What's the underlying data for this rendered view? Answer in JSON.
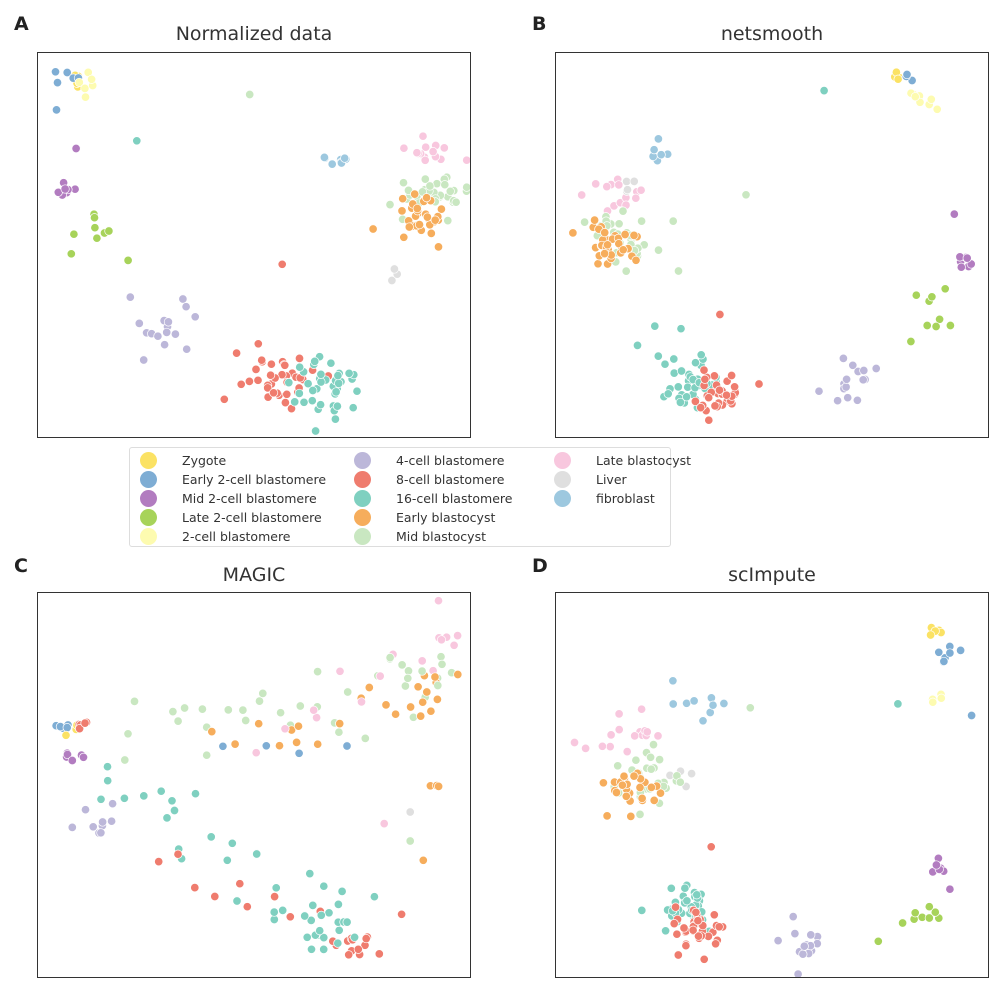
{
  "legend": [
    {
      "label": "Zygote",
      "color": "#fbe264"
    },
    {
      "label": "Early 2-cell blastomere",
      "color": "#7eadd4"
    },
    {
      "label": "Mid 2-cell blastomere",
      "color": "#b27cc0"
    },
    {
      "label": "Late 2-cell blastomere",
      "color": "#a7d35a"
    },
    {
      "label": "2-cell blastomere",
      "color": "#fdfbb0"
    },
    {
      "label": "4-cell blastomere",
      "color": "#bcb7d9"
    },
    {
      "label": "8-cell blastomere",
      "color": "#ef7c6e"
    },
    {
      "label": "16-cell blastomere",
      "color": "#7fd0c0"
    },
    {
      "label": "Early blastocyst",
      "color": "#f6ad5c"
    },
    {
      "label": "Mid blastocyst",
      "color": "#c9e7c1"
    },
    {
      "label": "Late blastocyst",
      "color": "#f8c7de"
    },
    {
      "label": "Liver",
      "color": "#dfdfdf"
    },
    {
      "label": "fibroblast",
      "color": "#9dc8df"
    }
  ],
  "chart_data": [
    {
      "type": "scatter",
      "panel": "A",
      "title": "Normalized data",
      "xlabel": "",
      "ylabel": "",
      "xlim": [
        0,
        100
      ],
      "ylim": [
        0,
        100
      ],
      "grid": false,
      "clusters": [
        {
          "group": "Zygote",
          "x": 9.5,
          "y": 94.5,
          "spread": 1.5,
          "n": 5
        },
        {
          "group": "Early 2-cell blastomere",
          "x": 7.5,
          "y": 93.5,
          "spread": 2.0,
          "n": 5
        },
        {
          "group": "2-cell blastomere",
          "x": 11.0,
          "y": 91.5,
          "spread": 2.0,
          "n": 6
        },
        {
          "group": "Mid 2-cell blastomere",
          "x": 6.5,
          "y": 64.5,
          "spread": 1.3,
          "n": 7
        },
        {
          "group": "Late 2-cell blastomere",
          "x": 12.5,
          "y": 54.5,
          "spread": 2.5,
          "n": 8
        },
        {
          "group": "4-cell blastomere",
          "x": 29.0,
          "y": 27.5,
          "spread": 3.5,
          "n": 14
        },
        {
          "group": "8-cell blastomere",
          "x": 56.0,
          "y": 15.0,
          "spread": 4.0,
          "n": 38
        },
        {
          "group": "16-cell blastomere",
          "x": 67.5,
          "y": 13.5,
          "spread": 4.0,
          "n": 40
        },
        {
          "group": "fibroblast",
          "x": 70.5,
          "y": 71.5,
          "spread": 1.5,
          "n": 8
        },
        {
          "group": "Late blastocyst",
          "x": 90.0,
          "y": 75.0,
          "spread": 3.0,
          "n": 14
        },
        {
          "group": "Mid blastocyst",
          "x": 90.0,
          "y": 63.0,
          "spread": 4.0,
          "n": 35
        },
        {
          "group": "Early blastocyst",
          "x": 88.5,
          "y": 56.0,
          "spread": 3.5,
          "n": 32
        },
        {
          "group": "Liver",
          "x": 82.0,
          "y": 42.0,
          "spread": 1.0,
          "n": 3
        }
      ],
      "outliers": [
        {
          "group": "Early 2-cell blastomere",
          "x": 4.5,
          "y": 85.0
        },
        {
          "group": "Mid 2-cell blastomere",
          "x": 9.0,
          "y": 75.0
        },
        {
          "group": "Late 2-cell blastomere",
          "x": 21.0,
          "y": 46.0
        },
        {
          "group": "4-cell blastomere",
          "x": 21.5,
          "y": 36.5
        },
        {
          "group": "4-cell blastomere",
          "x": 34.5,
          "y": 23.0
        },
        {
          "group": "16-cell blastomere",
          "x": 23.0,
          "y": 77.0
        },
        {
          "group": "Mid blastocyst",
          "x": 49.0,
          "y": 89.0
        },
        {
          "group": "8-cell blastomere",
          "x": 56.5,
          "y": 45.0
        },
        {
          "group": "8-cell blastomere",
          "x": 46.0,
          "y": 22.0
        }
      ]
    },
    {
      "type": "scatter",
      "panel": "B",
      "title": "netsmooth",
      "xlabel": "",
      "ylabel": "",
      "xlim": [
        0,
        100
      ],
      "ylim": [
        0,
        100
      ],
      "grid": false,
      "clusters": [
        {
          "group": "Zygote",
          "x": 79.0,
          "y": 94.0,
          "spread": 1.2,
          "n": 4
        },
        {
          "group": "Early 2-cell blastomere",
          "x": 80.5,
          "y": 94.0,
          "spread": 1.0,
          "n": 3
        },
        {
          "group": "2-cell blastomere",
          "x": 84.0,
          "y": 87.0,
          "spread": 2.5,
          "n": 8
        },
        {
          "group": "Mid 2-cell blastomere",
          "x": 95.0,
          "y": 46.0,
          "spread": 1.0,
          "n": 7
        },
        {
          "group": "Late 2-cell blastomere",
          "x": 88.0,
          "y": 34.0,
          "spread": 3.0,
          "n": 8
        },
        {
          "group": "4-cell blastomere",
          "x": 67.0,
          "y": 14.0,
          "spread": 3.0,
          "n": 14
        },
        {
          "group": "fibroblast",
          "x": 24.0,
          "y": 74.0,
          "spread": 1.8,
          "n": 6
        },
        {
          "group": "Late blastocyst",
          "x": 13.5,
          "y": 62.5,
          "spread": 3.5,
          "n": 14
        },
        {
          "group": "Liver",
          "x": 16.5,
          "y": 64.5,
          "spread": 1.2,
          "n": 4
        },
        {
          "group": "Mid blastocyst",
          "x": 17.0,
          "y": 51.5,
          "spread": 4.0,
          "n": 30
        },
        {
          "group": "Early blastocyst",
          "x": 12.5,
          "y": 50.5,
          "spread": 3.5,
          "n": 34
        },
        {
          "group": "16-cell blastomere",
          "x": 30.5,
          "y": 14.5,
          "spread": 4.0,
          "n": 38
        },
        {
          "group": "8-cell blastomere",
          "x": 38.0,
          "y": 11.0,
          "spread": 3.0,
          "n": 36
        }
      ],
      "outliers": [
        {
          "group": "16-cell blastomere",
          "x": 62.0,
          "y": 90.0
        },
        {
          "group": "Mid blastocyst",
          "x": 44.0,
          "y": 63.0
        },
        {
          "group": "Mid 2-cell blastomere",
          "x": 92.0,
          "y": 58.0
        },
        {
          "group": "Late 2-cell blastomere",
          "x": 82.0,
          "y": 25.0
        },
        {
          "group": "4-cell blastomere",
          "x": 74.0,
          "y": 18.0
        },
        {
          "group": "16-cell blastomere",
          "x": 23.0,
          "y": 29.0
        },
        {
          "group": "16-cell blastomere",
          "x": 19.0,
          "y": 24.0
        },
        {
          "group": "8-cell blastomere",
          "x": 38.0,
          "y": 32.0
        },
        {
          "group": "8-cell blastomere",
          "x": 47.0,
          "y": 14.0
        }
      ]
    },
    {
      "type": "scatter",
      "panel": "C",
      "title": "MAGIC",
      "xlabel": "",
      "ylabel": "",
      "xlim": [
        0,
        100
      ],
      "ylim": [
        0,
        100
      ],
      "grid": false,
      "clusters": [
        {
          "group": "Early 2-cell blastomere",
          "x": 6.0,
          "y": 66.5,
          "spread": 1.2,
          "n": 5
        },
        {
          "group": "Zygote",
          "x": 8.0,
          "y": 64.5,
          "spread": 1.0,
          "n": 3
        },
        {
          "group": "8-cell blastomere",
          "x": 10.5,
          "y": 66.0,
          "spread": 1.5,
          "n": 5
        },
        {
          "group": "Mid 2-cell blastomere",
          "x": 8.0,
          "y": 58.0,
          "spread": 1.2,
          "n": 6
        },
        {
          "group": "4-cell blastomere",
          "x": 13.0,
          "y": 41.0,
          "spread": 2.5,
          "n": 10
        },
        {
          "group": "8-cell blastomere",
          "x": 73.0,
          "y": 8.0,
          "spread": 2.5,
          "n": 10
        },
        {
          "group": "16-cell blastomere",
          "x": 68.0,
          "y": 14.0,
          "spread": 4.5,
          "n": 18
        },
        {
          "group": "Early blastocyst",
          "x": 90.0,
          "y": 74.0,
          "spread": 3.5,
          "n": 10
        },
        {
          "group": "Late blastocyst",
          "x": 92.0,
          "y": 86.0,
          "spread": 2.5,
          "n": 6
        },
        {
          "group": "Mid blastocyst",
          "x": 88.0,
          "y": 80.0,
          "spread": 4.0,
          "n": 8
        },
        {
          "group": "Early blastocyst",
          "x": 91.0,
          "y": 49.5,
          "spread": 1.0,
          "n": 3
        }
      ],
      "trail": [
        {
          "group": "Mid blastocyst",
          "x0": 22,
          "y0": 60,
          "x1": 92,
          "y1": 80,
          "n": 30,
          "jitter": 5
        },
        {
          "group": "Early blastocyst",
          "x0": 42,
          "y0": 58,
          "x1": 88,
          "y1": 72,
          "n": 14,
          "jitter": 4
        },
        {
          "group": "Late blastocyst",
          "x0": 52,
          "y0": 57,
          "x1": 94,
          "y1": 88,
          "n": 10,
          "jitter": 4
        },
        {
          "group": "16-cell blastomere",
          "x0": 14,
          "y0": 55,
          "x1": 70,
          "y1": 15,
          "n": 26,
          "jitter": 5
        },
        {
          "group": "8-cell blastomere",
          "x0": 28,
          "y0": 30,
          "x1": 78,
          "y1": 8,
          "n": 12,
          "jitter": 3
        },
        {
          "group": "Early 2-cell blastomere",
          "x0": 44,
          "y0": 60,
          "x1": 70,
          "y1": 62,
          "n": 4,
          "jitter": 2
        }
      ],
      "outliers": [
        {
          "group": "Liver",
          "x": 86.0,
          "y": 43.0
        },
        {
          "group": "Mid blastocyst",
          "x": 86.0,
          "y": 35.5
        },
        {
          "group": "Early blastocyst",
          "x": 89.0,
          "y": 30.5
        },
        {
          "group": "8-cell blastomere",
          "x": 84.0,
          "y": 16.5
        },
        {
          "group": "Late blastocyst",
          "x": 80.0,
          "y": 40.0
        }
      ]
    },
    {
      "type": "scatter",
      "panel": "D",
      "title": "scImpute",
      "xlabel": "",
      "ylabel": "",
      "xlim": [
        0,
        100
      ],
      "ylim": [
        0,
        100
      ],
      "grid": false,
      "clusters": [
        {
          "group": "Zygote",
          "x": 88.0,
          "y": 90.0,
          "spread": 1.2,
          "n": 5
        },
        {
          "group": "Early 2-cell blastomere",
          "x": 90.5,
          "y": 84.0,
          "spread": 1.5,
          "n": 7
        },
        {
          "group": "2-cell blastomere",
          "x": 89.5,
          "y": 72.0,
          "spread": 1.2,
          "n": 4
        },
        {
          "group": "Mid 2-cell blastomere",
          "x": 88.0,
          "y": 29.0,
          "spread": 1.0,
          "n": 6
        },
        {
          "group": "Late 2-cell blastomere",
          "x": 85.0,
          "y": 18.5,
          "spread": 3.0,
          "n": 8
        },
        {
          "group": "4-cell blastomere",
          "x": 58.0,
          "y": 8.5,
          "spread": 3.5,
          "n": 14
        },
        {
          "group": "fibroblast",
          "x": 34.5,
          "y": 71.5,
          "spread": 3.0,
          "n": 9
        },
        {
          "group": "Late blastocyst",
          "x": 17.0,
          "y": 64.0,
          "spread": 3.0,
          "n": 16
        },
        {
          "group": "Liver",
          "x": 29.0,
          "y": 51.0,
          "spread": 2.0,
          "n": 4
        },
        {
          "group": "Mid blastocyst",
          "x": 21.0,
          "y": 52.0,
          "spread": 4.0,
          "n": 32
        },
        {
          "group": "Early blastocyst",
          "x": 19.0,
          "y": 49.0,
          "spread": 3.0,
          "n": 26
        },
        {
          "group": "16-cell blastomere",
          "x": 30.0,
          "y": 19.0,
          "spread": 4.0,
          "n": 36
        },
        {
          "group": "8-cell blastomere",
          "x": 33.5,
          "y": 12.5,
          "spread": 3.0,
          "n": 36
        }
      ],
      "outliers": [
        {
          "group": "Late blastocyst",
          "x": 4.5,
          "y": 61.0
        },
        {
          "group": "Mid blastocyst",
          "x": 45.0,
          "y": 70.0
        },
        {
          "group": "16-cell blastomere",
          "x": 79.0,
          "y": 71.0
        },
        {
          "group": "Early 2-cell blastomere",
          "x": 96.0,
          "y": 68.0
        },
        {
          "group": "Early blastocyst",
          "x": 12.0,
          "y": 42.0
        },
        {
          "group": "8-cell blastomere",
          "x": 36.0,
          "y": 34.0
        },
        {
          "group": "Mid 2-cell blastomere",
          "x": 91.0,
          "y": 23.0
        },
        {
          "group": "Late 2-cell blastomere",
          "x": 74.5,
          "y": 9.5
        },
        {
          "group": "16-cell blastomere",
          "x": 20.0,
          "y": 17.5
        }
      ]
    }
  ]
}
